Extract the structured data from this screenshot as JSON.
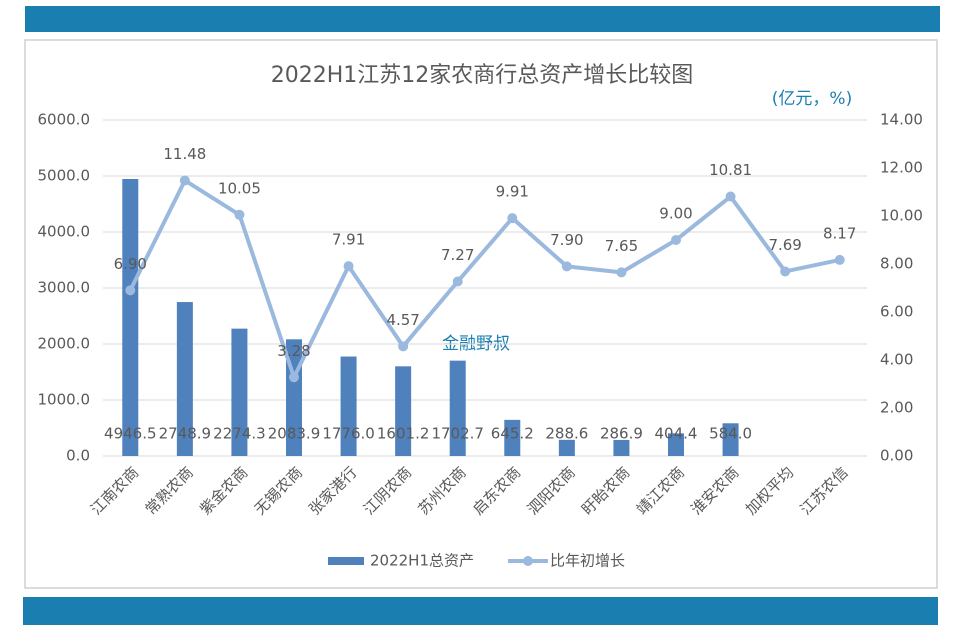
{
  "chart_data": {
    "type": "combo",
    "title": "2022H1江苏12家农商行总资产增长比较图",
    "unit_label": "(亿元，%)",
    "annotation": "金融野叔",
    "categories": [
      "江南农商",
      "常熟农商",
      "紫金农商",
      "无锡农商",
      "张家港行",
      "江阴农商",
      "苏州农商",
      "启东农商",
      "泗阳农商",
      "盱眙农商",
      "靖江农商",
      "淮安农商",
      "加权平均",
      "江苏农信"
    ],
    "series": [
      {
        "name": "2022H1总资产",
        "type": "bar",
        "color": "#4f81bd",
        "values": [
          4946.5,
          2748.9,
          2274.3,
          2083.9,
          1776.0,
          1601.2,
          1702.7,
          645.2,
          288.6,
          286.9,
          404.4,
          584.0,
          null,
          null
        ],
        "value_labels": [
          "4946.5",
          "2748.9",
          "2274.3",
          "2083.9",
          "1776.0",
          "1601.2",
          "1702.7",
          "645.2",
          "288.6",
          "286.9",
          "404.4",
          "584.0",
          null,
          null
        ]
      },
      {
        "name": "比年初增长",
        "type": "line",
        "axis": "y2",
        "color": "#9bb9de",
        "values": [
          6.9,
          11.48,
          10.05,
          3.28,
          7.91,
          4.57,
          7.27,
          9.91,
          7.9,
          7.65,
          9.0,
          10.81,
          7.69,
          8.17
        ],
        "value_labels": [
          "6.90",
          "11.48",
          "10.05",
          "3.28",
          "7.91",
          "4.57",
          "7.27",
          "9.91",
          "7.90",
          "7.65",
          "9.00",
          "10.81",
          "7.69",
          "8.17"
        ]
      }
    ],
    "ylim": [
      0,
      6000
    ],
    "yticks": [
      {
        "value": 0,
        "label": "0.0"
      },
      {
        "value": 1000,
        "label": "1000.0"
      },
      {
        "value": 2000,
        "label": "2000.0"
      },
      {
        "value": 3000,
        "label": "3000.0"
      },
      {
        "value": 4000,
        "label": "4000.0"
      },
      {
        "value": 5000,
        "label": "5000.0"
      },
      {
        "value": 6000,
        "label": "6000.0"
      }
    ],
    "y2lim": [
      0,
      14
    ],
    "y2ticks": [
      {
        "value": 0,
        "label": "0.00"
      },
      {
        "value": 2,
        "label": "2.00"
      },
      {
        "value": 4,
        "label": "4.00"
      },
      {
        "value": 6,
        "label": "6.00"
      },
      {
        "value": 8,
        "label": "8.00"
      },
      {
        "value": 10,
        "label": "10.00"
      },
      {
        "value": 12,
        "label": "12.00"
      },
      {
        "value": 14,
        "label": "14.00"
      }
    ],
    "grid": true
  }
}
